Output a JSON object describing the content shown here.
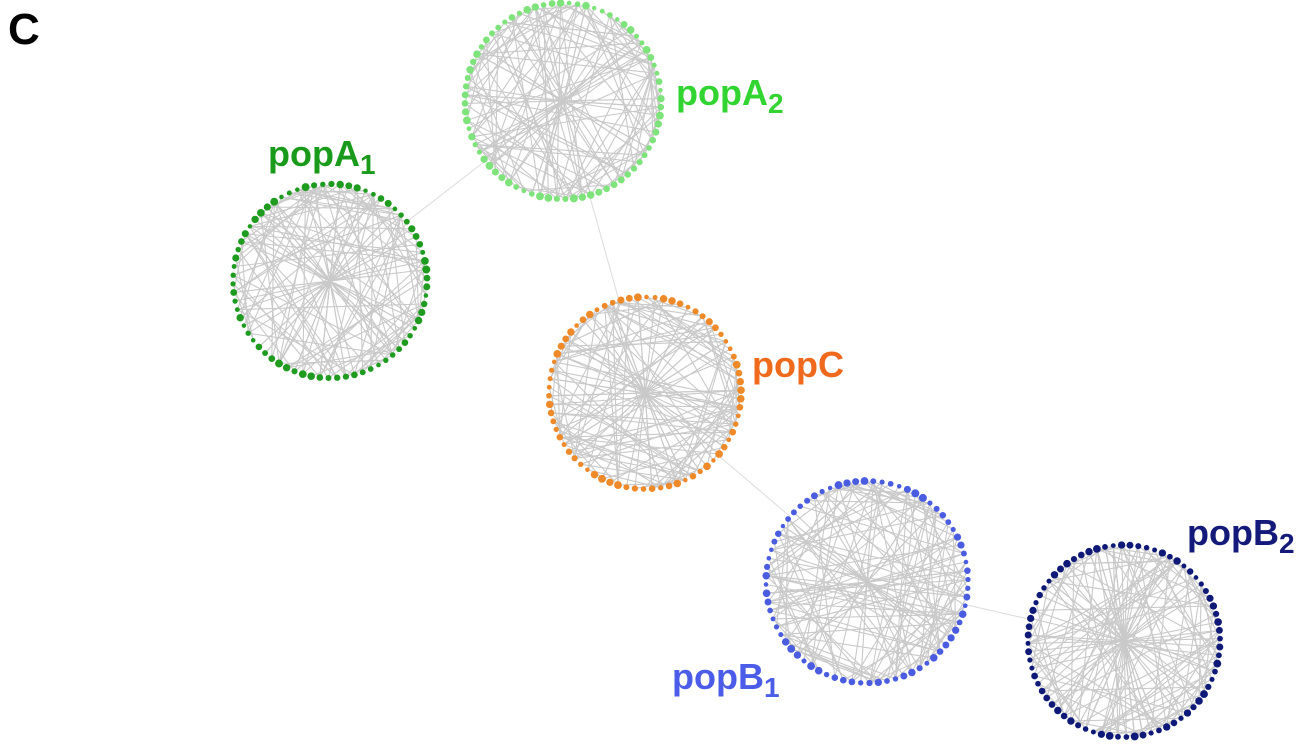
{
  "panel_label": "C",
  "populations": [
    {
      "id": "popA2",
      "base": "popA",
      "sub": "2",
      "color": "#7ee37a"
    },
    {
      "id": "popA1",
      "base": "popA",
      "sub": "1",
      "color": "#1f9b1f"
    },
    {
      "id": "popC",
      "base": "popC",
      "sub": "",
      "color": "#ee8a2a"
    },
    {
      "id": "popB1",
      "base": "popB",
      "sub": "1",
      "color": "#4a5ce0"
    },
    {
      "id": "popB2",
      "base": "popB",
      "sub": "2",
      "color": "#0f1a78"
    }
  ],
  "label_colors": {
    "popA2": "#32d432",
    "popA1": "#1a9a1a",
    "popC": "#f06a1e",
    "popB1": "#4a5ce8",
    "popB2": "#141a7a"
  },
  "links": [
    [
      "popA1",
      "popA2"
    ],
    [
      "popA2",
      "popC"
    ],
    [
      "popC",
      "popB1"
    ],
    [
      "popB1",
      "popB2"
    ]
  ]
}
